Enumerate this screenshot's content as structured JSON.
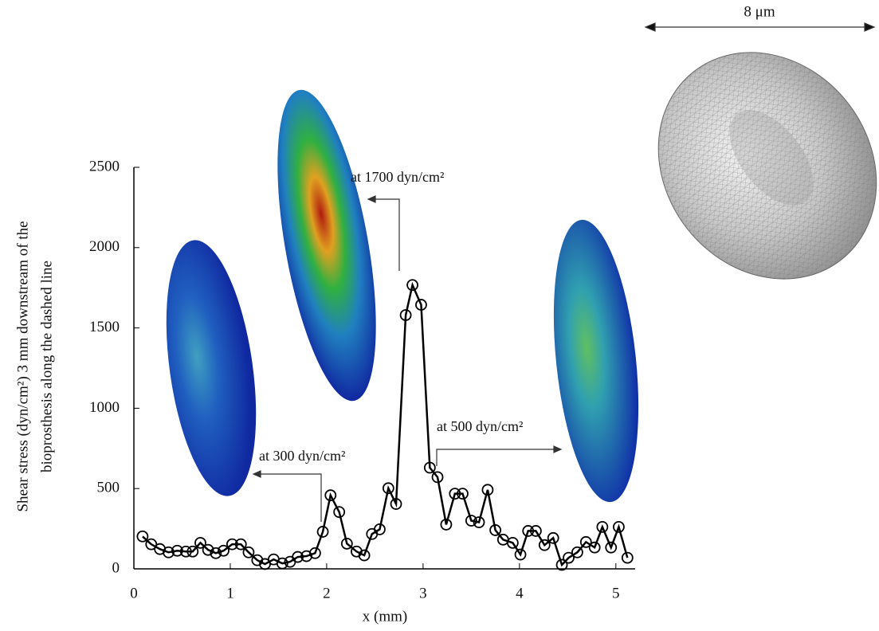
{
  "chart_data": {
    "type": "line",
    "y_label": [
      "Shear stress (dyn/cm²) 3 mm downstream of the",
      "bioprosthesis along the dashed line"
    ],
    "x_label": "x (mm)",
    "annotations": [
      "at 1700 dyn/cm²",
      "at 300 dyn/cm²",
      "at 500 dyn/cm²",
      "8 μm"
    ],
    "xlim": [
      0,
      5.2
    ],
    "xticks": [
      0,
      1,
      2,
      3,
      4,
      5
    ],
    "ylim": [
      0,
      2500
    ],
    "yticks": [
      0,
      500,
      1000,
      1500,
      2000,
      2500
    ],
    "series": [
      {
        "color": "#000000",
        "marker": "circle",
        "x": [
          0.09,
          0.18,
          0.27,
          0.36,
          0.45,
          0.54,
          0.61,
          0.69,
          0.77,
          0.85,
          0.93,
          1.02,
          1.11,
          1.19,
          1.28,
          1.36,
          1.45,
          1.54,
          1.62,
          1.7,
          1.79,
          1.88,
          1.96,
          2.04,
          2.13,
          2.21,
          2.31,
          2.39,
          2.47,
          2.55,
          2.64,
          2.72,
          2.82,
          2.89,
          2.98,
          3.07,
          3.15,
          3.24,
          3.33,
          3.41,
          3.5,
          3.58,
          3.67,
          3.75,
          3.83,
          3.93,
          4.01,
          4.09,
          4.17,
          4.26,
          4.35,
          4.44,
          4.51,
          4.6,
          4.69,
          4.78,
          4.86,
          4.95,
          5.03,
          5.12
        ],
        "values": [
          202,
          153,
          123,
          103,
          113,
          108,
          108,
          162,
          118,
          98,
          113,
          153,
          153,
          103,
          54,
          30,
          59,
          34,
          44,
          74,
          79,
          98,
          231,
          458,
          354,
          157,
          108,
          84,
          217,
          246,
          502,
          404,
          1580,
          1767,
          1644,
          630,
          571,
          276,
          468,
          468,
          300,
          290,
          492,
          241,
          182,
          162,
          89,
          236,
          236,
          148,
          192,
          25,
          69,
          103,
          167,
          133,
          261,
          133,
          261,
          69
        ]
      }
    ]
  }
}
